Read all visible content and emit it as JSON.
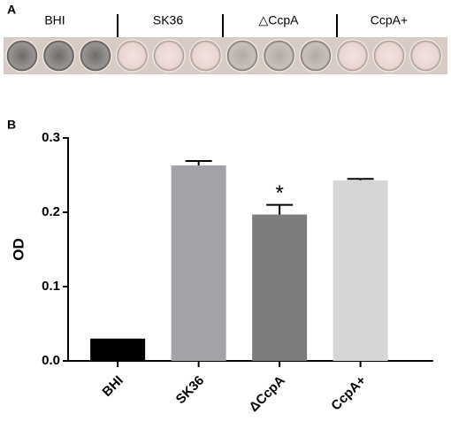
{
  "panel_a": {
    "label": "A",
    "groups": [
      "BHI",
      "SK36",
      "△CcpA",
      "CcpA+"
    ]
  },
  "chart_data": {
    "type": "bar",
    "panel_label": "B",
    "y_label": "OD",
    "categories": [
      "BHI",
      "SK36",
      "ΔCcpA",
      "CcpA+"
    ],
    "values": [
      0.03,
      0.263,
      0.197,
      0.243
    ],
    "errors": [
      null,
      0.006,
      0.013,
      0.002
    ],
    "colors": [
      "#000000",
      "#a2a2a8",
      "#7d7d80",
      "#d6d6d6"
    ],
    "ylim": [
      0,
      0.3
    ],
    "yticks": [
      {
        "value": 0,
        "label": "0.0"
      },
      0.1,
      0.2,
      0.3
    ],
    "annotations": [
      {
        "text": "*",
        "category": "ΔCcpA"
      }
    ]
  }
}
